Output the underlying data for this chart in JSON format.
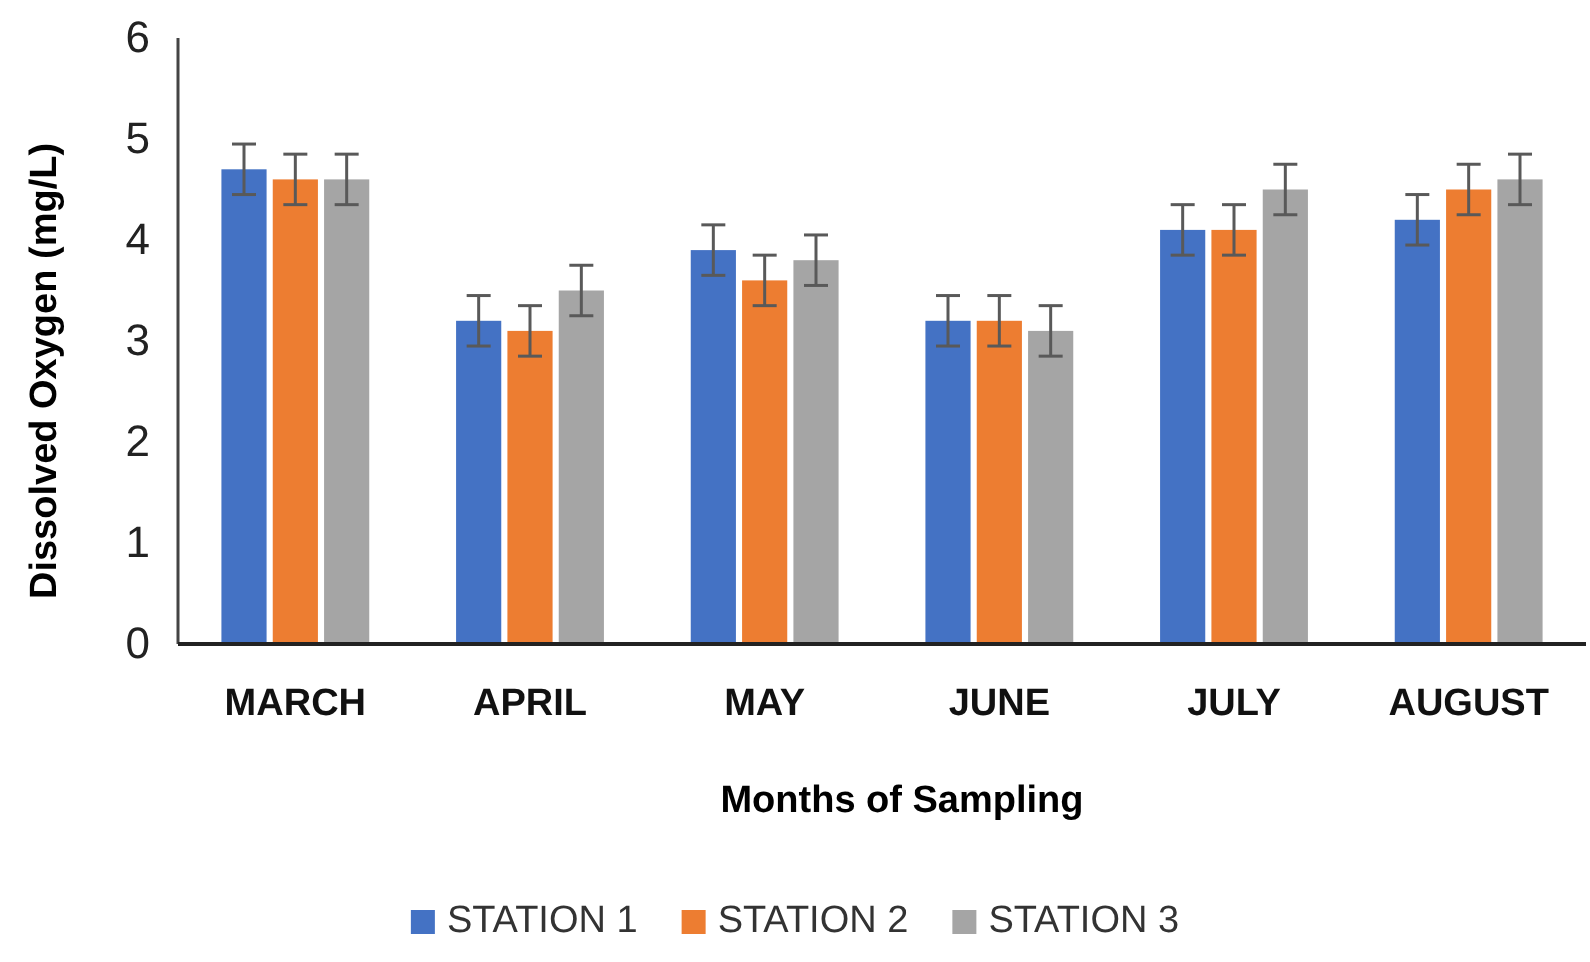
{
  "chart_data": {
    "type": "bar",
    "xlabel": "Months of Sampling",
    "ylabel": "Dissolved Oxygen (mg/L)",
    "categories": [
      "MARCH",
      "APRIL",
      "MAY",
      "JUNE",
      "JULY",
      "AUGUST"
    ],
    "series": [
      {
        "name": "STATION 1",
        "color": "#4472c4",
        "values": [
          4.7,
          3.2,
          3.9,
          3.2,
          4.1,
          4.2
        ],
        "errors": [
          0.25,
          0.25,
          0.25,
          0.25,
          0.25,
          0.25
        ]
      },
      {
        "name": "STATION 2",
        "color": "#ed7d31",
        "values": [
          4.6,
          3.1,
          3.6,
          3.2,
          4.1,
          4.5
        ],
        "errors": [
          0.25,
          0.25,
          0.25,
          0.25,
          0.25,
          0.25
        ]
      },
      {
        "name": "STATION 3",
        "color": "#a5a5a5",
        "values": [
          4.6,
          3.5,
          3.8,
          3.1,
          4.5,
          4.6
        ],
        "errors": [
          0.25,
          0.25,
          0.25,
          0.25,
          0.25,
          0.25
        ]
      }
    ],
    "ylim": [
      0,
      6
    ],
    "yticks": [
      0,
      1,
      2,
      3,
      4,
      5,
      6
    ],
    "grid": false,
    "legend": "bottom"
  }
}
